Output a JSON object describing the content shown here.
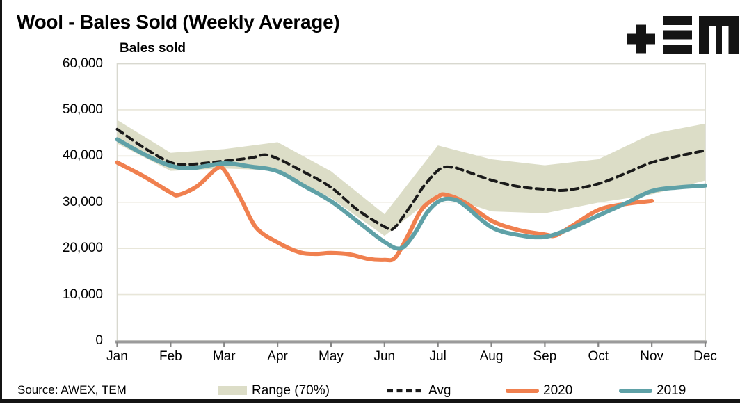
{
  "header": {
    "title": "Wool - Bales Sold (Weekly Average)"
  },
  "logo": {
    "brand": "TEM"
  },
  "source_note": "Source: AWEX, TEM",
  "legend": [
    {
      "label": "Range (70%)",
      "swatch": "band"
    },
    {
      "label": "Avg",
      "swatch": "dashed-line"
    },
    {
      "label": "2020",
      "swatch": "line"
    },
    {
      "label": "2019",
      "swatch": "line"
    }
  ],
  "colors": {
    "background": "#ffffff",
    "text": "#000000",
    "gridline": "#e8e6d9",
    "plot_border": "#d8d8cf",
    "axis_line": "#9b9b9b",
    "tick": "#858585",
    "frame_rule": "#141414"
  },
  "chart_data": {
    "type": "line",
    "title": "Wool - Bales Sold (Weekly Average)",
    "axis_title": "Bales sold",
    "xlabel": "",
    "ylabel": "Bales sold",
    "ylim": [
      0,
      60000
    ],
    "yticks": [
      0,
      10000,
      20000,
      30000,
      40000,
      50000,
      60000
    ],
    "ytick_labels": [
      "0",
      "10,000",
      "20,000",
      "30,000",
      "40,000",
      "50,000",
      "60,000"
    ],
    "categories": [
      "Jan",
      "Feb",
      "Mar",
      "Apr",
      "May",
      "Jun",
      "Jul",
      "Aug",
      "Sep",
      "Oct",
      "Nov",
      "Dec"
    ],
    "grid": true,
    "legend_position": "bottom",
    "band": {
      "name": "Range (70%)",
      "color": "#dcddc7",
      "x": [
        0,
        1,
        2,
        3,
        4,
        5,
        6,
        7,
        8,
        9,
        10,
        11
      ],
      "top": [
        47800,
        40700,
        41500,
        43000,
        36700,
        27400,
        42300,
        39300,
        38000,
        39300,
        44800,
        47000
      ],
      "bottom": [
        42700,
        36800,
        37300,
        36900,
        30900,
        22700,
        31800,
        28000,
        27600,
        29900,
        31700,
        34700
      ]
    },
    "series": [
      {
        "name": "Avg",
        "style": "dashed",
        "color": "#1a1a1a",
        "x": [
          0,
          0.5,
          1,
          1.35,
          2,
          2.5,
          2.85,
          3.5,
          4,
          4.5,
          5,
          5.18,
          5.5,
          5.75,
          6.05,
          6.3,
          6.5,
          7,
          7.5,
          8,
          8.4,
          9,
          9.5,
          10,
          10.5,
          11
        ],
        "values": [
          45800,
          41800,
          38600,
          38200,
          38900,
          39600,
          40100,
          36500,
          33200,
          28300,
          24700,
          24400,
          29400,
          33700,
          37300,
          37500,
          36800,
          34800,
          33400,
          32800,
          32600,
          34000,
          36200,
          38600,
          40000,
          41200
        ]
      },
      {
        "name": "2020",
        "style": "solid",
        "color": "#f0804f",
        "x": [
          0,
          0.5,
          1,
          1.15,
          1.5,
          1.85,
          2,
          2.3,
          2.6,
          3,
          3.4,
          3.7,
          4,
          4.35,
          4.7,
          5,
          5.2,
          5.45,
          5.7,
          6,
          6.15,
          6.5,
          7,
          7.5,
          8,
          8.2,
          8.5,
          9,
          9.5,
          10
        ],
        "values": [
          38600,
          35600,
          32100,
          31600,
          33500,
          37200,
          37000,
          31000,
          24500,
          21300,
          19200,
          18800,
          19000,
          18700,
          17700,
          17500,
          18000,
          23000,
          28500,
          31200,
          31600,
          30000,
          26000,
          24000,
          23000,
          22800,
          24800,
          28300,
          29600,
          30300
        ]
      },
      {
        "name": "2019",
        "style": "solid",
        "color": "#5fa1a7",
        "x": [
          0,
          0.5,
          1,
          1.4,
          2,
          2.5,
          3,
          3.5,
          4,
          4.5,
          5,
          5.3,
          5.55,
          5.8,
          6.05,
          6.3,
          6.5,
          7,
          7.5,
          8,
          8.5,
          9,
          9.5,
          10,
          10.5,
          11
        ],
        "values": [
          43600,
          40400,
          37900,
          37400,
          38400,
          37700,
          36700,
          33500,
          30200,
          25800,
          21400,
          20000,
          23000,
          27800,
          30400,
          30600,
          29300,
          24600,
          22900,
          22500,
          24400,
          27100,
          29700,
          32400,
          33200,
          33600
        ]
      }
    ]
  }
}
